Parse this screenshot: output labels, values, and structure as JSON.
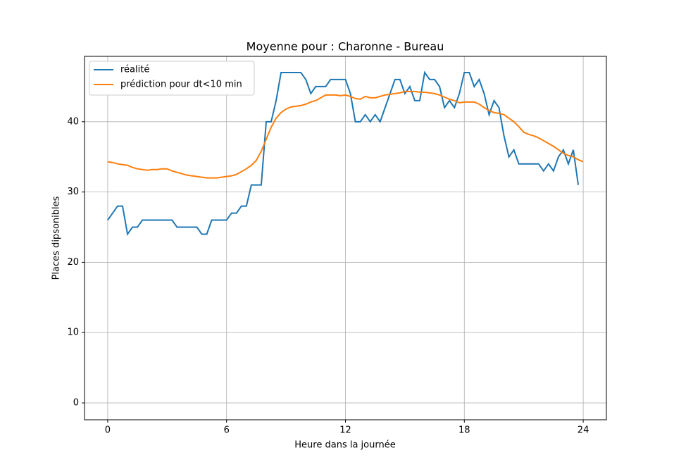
{
  "chart_data": {
    "type": "line",
    "title": "Moyenne pour : Charonne - Bureau",
    "x_label": "Heure dans la journée",
    "y_label": "Places dipsonibles",
    "x": [
      0,
      0.25,
      0.5,
      0.75,
      1,
      1.25,
      1.5,
      1.75,
      2,
      2.25,
      2.5,
      2.75,
      3,
      3.25,
      3.5,
      3.75,
      4,
      4.25,
      4.5,
      4.75,
      5,
      5.25,
      5.5,
      5.75,
      6,
      6.25,
      6.5,
      6.75,
      7,
      7.25,
      7.5,
      7.75,
      8,
      8.25,
      8.5,
      8.75,
      9,
      9.25,
      9.5,
      9.75,
      10,
      10.25,
      10.5,
      10.75,
      11,
      11.25,
      11.5,
      11.75,
      12,
      12.25,
      12.5,
      12.75,
      13,
      13.25,
      13.5,
      13.75,
      14,
      14.25,
      14.5,
      14.75,
      15,
      15.25,
      15.5,
      15.75,
      16,
      16.25,
      16.5,
      16.75,
      17,
      17.25,
      17.5,
      17.75,
      18,
      18.25,
      18.5,
      18.75,
      19,
      19.25,
      19.5,
      19.75,
      20,
      20.25,
      20.5,
      20.75,
      21,
      21.25,
      21.5,
      21.75,
      22,
      22.25,
      22.5,
      22.75,
      23,
      23.25,
      23.5,
      23.75,
      24
    ],
    "series": [
      {
        "name": "réalité",
        "color": "#1f77b4",
        "values": [
          26,
          27,
          28,
          28,
          24,
          25,
          25,
          26,
          26,
          26,
          26,
          26,
          26,
          26,
          25,
          25,
          25,
          25,
          25,
          24,
          24,
          26,
          26,
          26,
          26,
          27,
          27,
          28,
          28,
          31,
          31,
          31,
          40,
          40,
          43,
          47,
          47,
          47,
          47,
          47,
          46,
          44,
          45,
          45,
          45,
          46,
          46,
          46,
          46,
          44,
          40,
          40,
          41,
          40,
          41,
          40,
          42,
          44,
          46,
          46,
          44,
          45,
          43,
          43,
          47,
          46,
          46,
          45,
          42,
          43,
          42,
          44,
          47,
          47,
          45,
          46,
          44,
          41,
          43,
          42,
          38,
          35,
          36,
          34,
          34,
          34,
          34,
          34,
          33,
          34,
          33,
          35,
          36,
          34,
          36,
          31,
          null
        ]
      },
      {
        "name": "prédiction pour dt<10 min",
        "color": "#ff7f0e",
        "values": [
          34.3,
          34.2,
          34.0,
          33.9,
          33.8,
          33.5,
          33.3,
          33.2,
          33.1,
          33.2,
          33.2,
          33.3,
          33.3,
          33.0,
          32.8,
          32.6,
          32.4,
          32.3,
          32.2,
          32.1,
          32.0,
          32.0,
          32.0,
          32.1,
          32.2,
          32.3,
          32.5,
          32.9,
          33.3,
          33.8,
          34.5,
          35.8,
          37.5,
          39.2,
          40.5,
          41.3,
          41.8,
          42.1,
          42.2,
          42.3,
          42.5,
          42.8,
          43.0,
          43.4,
          43.8,
          43.8,
          43.8,
          43.7,
          43.8,
          43.6,
          43.3,
          43.2,
          43.6,
          43.4,
          43.4,
          43.6,
          43.8,
          43.9,
          44.0,
          44.1,
          44.3,
          44.3,
          44.3,
          44.2,
          44.2,
          44.1,
          44.0,
          43.8,
          43.5,
          43.2,
          43.0,
          42.7,
          42.8,
          42.8,
          42.8,
          42.5,
          42.0,
          41.6,
          41.3,
          41.2,
          41.0,
          40.5,
          40.0,
          39.3,
          38.5,
          38.2,
          38.0,
          37.7,
          37.3,
          36.9,
          36.5,
          36.0,
          35.5,
          35.2,
          35.0,
          34.6,
          34.3
        ]
      }
    ],
    "xlim": [
      -1.17,
      25.17
    ],
    "ylim": [
      -2.4,
      49.3
    ],
    "xticks": [
      0,
      6,
      12,
      18,
      24
    ],
    "yticks": [
      0,
      10,
      20,
      30,
      40
    ],
    "grid": true,
    "legend": "upper left"
  }
}
